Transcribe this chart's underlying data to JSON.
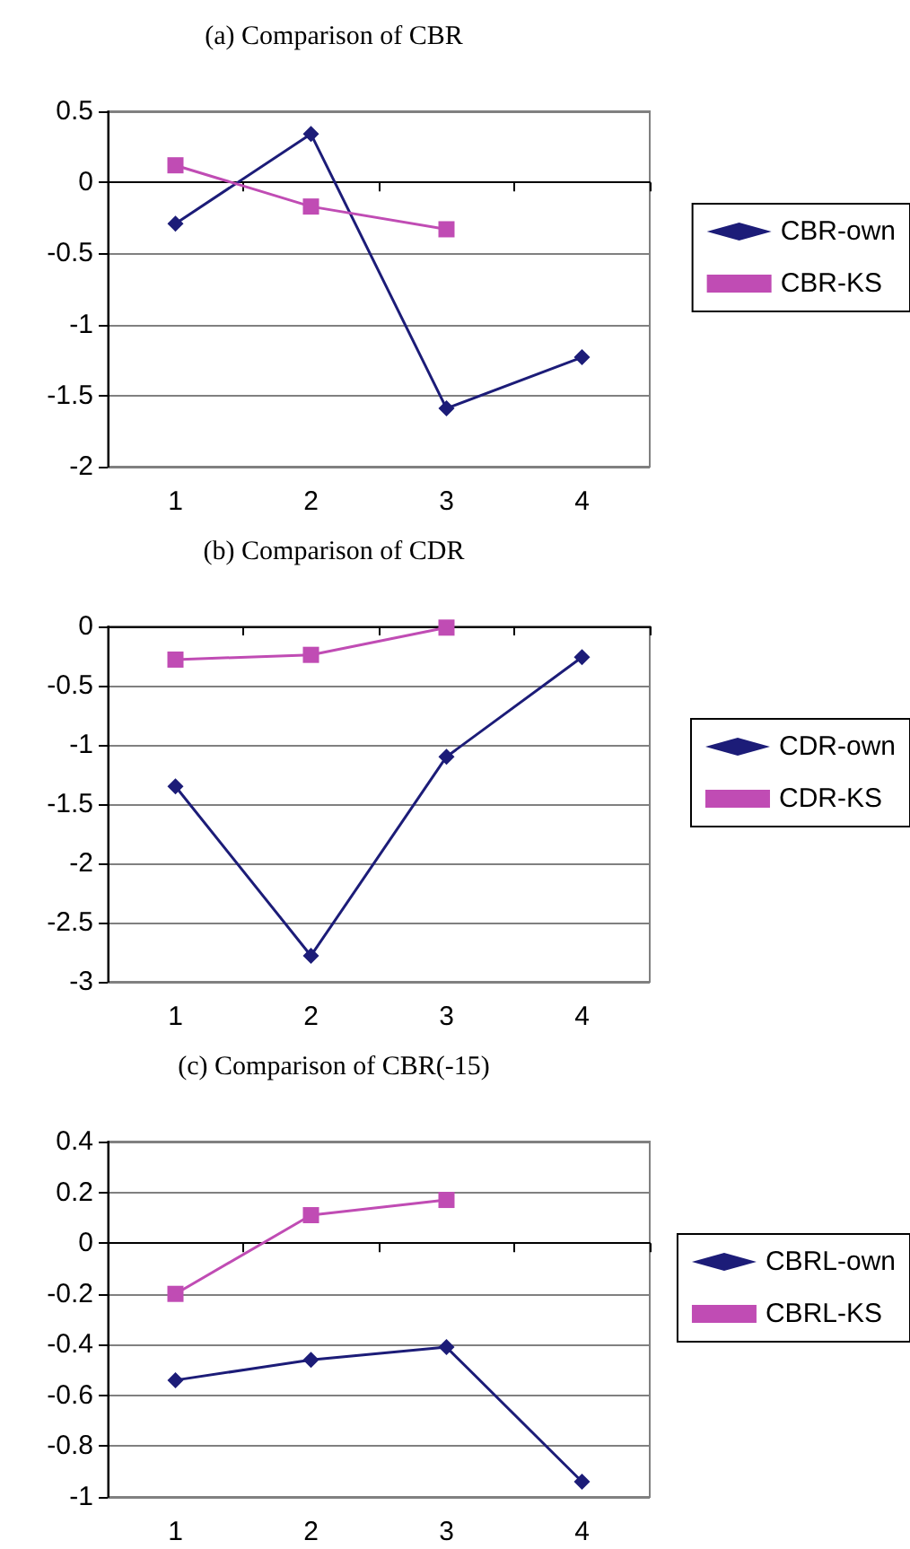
{
  "chart_data": [
    {
      "type": "line",
      "title": "(a) Comparison of CBR",
      "categories": [
        "1",
        "2",
        "3",
        "4"
      ],
      "series": [
        {
          "name": "CBR-own",
          "color": "#1c1c78",
          "marker": "diamond",
          "values": [
            -0.29,
            0.34,
            -1.59,
            -1.23
          ]
        },
        {
          "name": "CBR-KS",
          "color": "#c04cb4",
          "marker": "square",
          "values": [
            0.12,
            -0.17,
            -0.33,
            null
          ]
        }
      ],
      "ylim": [
        -2,
        0.5
      ],
      "yticks": [
        -2,
        -1.5,
        -1,
        -0.5,
        0,
        0.5
      ],
      "grid": "y",
      "legend": "right"
    },
    {
      "type": "line",
      "title": "(b) Comparison of CDR",
      "categories": [
        "1",
        "2",
        "3",
        "4"
      ],
      "series": [
        {
          "name": "CDR-own",
          "color": "#1c1c78",
          "marker": "diamond",
          "values": [
            -1.35,
            -2.78,
            -1.1,
            -0.26
          ]
        },
        {
          "name": "CDR-KS",
          "color": "#c04cb4",
          "marker": "square",
          "values": [
            -0.28,
            -0.24,
            -0.01,
            null
          ]
        }
      ],
      "ylim": [
        -3,
        0
      ],
      "yticks": [
        -3,
        -2.5,
        -2,
        -1.5,
        -1,
        -0.5,
        0
      ],
      "grid": "y",
      "legend": "right"
    },
    {
      "type": "line",
      "title": "(c) Comparison of CBR(-15)",
      "categories": [
        "1",
        "2",
        "3",
        "4"
      ],
      "series": [
        {
          "name": "CBRL-own",
          "color": "#1c1c78",
          "marker": "diamond",
          "values": [
            -0.54,
            -0.46,
            -0.41,
            -0.94
          ]
        },
        {
          "name": "CBRL-KS",
          "color": "#c04cb4",
          "marker": "square",
          "values": [
            -0.2,
            0.11,
            0.17,
            null
          ]
        }
      ],
      "ylim": [
        -1,
        0.4
      ],
      "yticks": [
        -1,
        -0.8,
        -0.6,
        -0.4,
        -0.2,
        0,
        0.2,
        0.4
      ],
      "grid": "y",
      "legend": "right"
    }
  ]
}
